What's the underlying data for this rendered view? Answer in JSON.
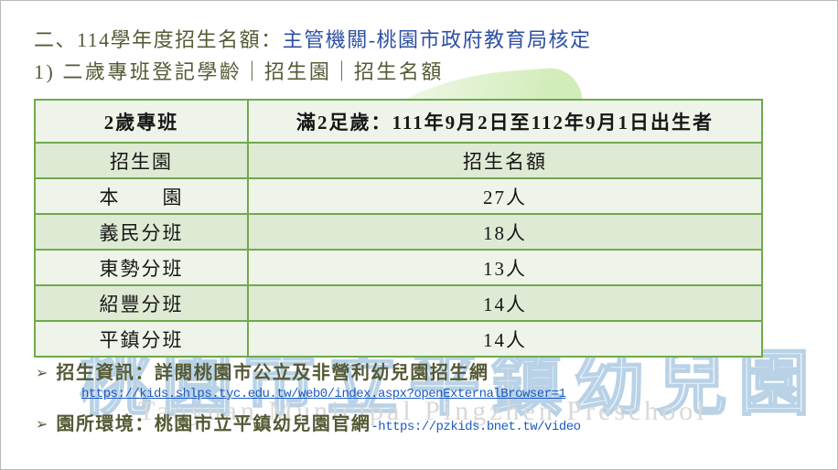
{
  "page": {
    "title_prefix": "二、114學年度招生名額：",
    "title_highlight": "主管機關-桃園市政府教育局核定",
    "subtitle": "1)  二歲專班登記學齡｜招生園｜招生名額"
  },
  "table": {
    "rows": [
      {
        "col1": "2歲專班",
        "col2": "滿2足歲：111年9月2日至112年9月1日出生者"
      },
      {
        "col1": "招生園",
        "col2": "招生名額"
      },
      {
        "col1": "本　　園",
        "col2": "27人"
      },
      {
        "col1": "義民分班",
        "col2": "18人"
      },
      {
        "col1": "東勢分班",
        "col2": "13人"
      },
      {
        "col1": "紹豐分班",
        "col2": "14人"
      },
      {
        "col1": "平鎮分班",
        "col2": "14人"
      }
    ]
  },
  "notes": {
    "bullet_marker": "➢",
    "item1_label": "招生資訊：詳閱桃園市公立及非營利幼兒園招生網",
    "item1_link": "https://kids.shlps.tyc.edu.tw/web0/index.aspx?openExternalBrowser=1",
    "item2_label": "園所環境：桃園市立平鎮幼兒園官網",
    "item2_link": "-https://pzkids.bnet.tw/video"
  },
  "watermark": {
    "cjk": "桃園市立平鎮幼兒園",
    "en": "Taoyuan Municipal Pingzhen Preschool"
  },
  "colors": {
    "heading_olive": "#555a35",
    "heading_blue": "#2e4fa3",
    "link_blue": "#1b5ac2",
    "table_border": "#70a94e",
    "row_light": "#eef4e9",
    "row_shaded": "#dfead4",
    "watermark_outline_blue": "#b9d2e6",
    "watermark_gray": "#d9d9d9",
    "leaf_green": "#d2ecba"
  }
}
